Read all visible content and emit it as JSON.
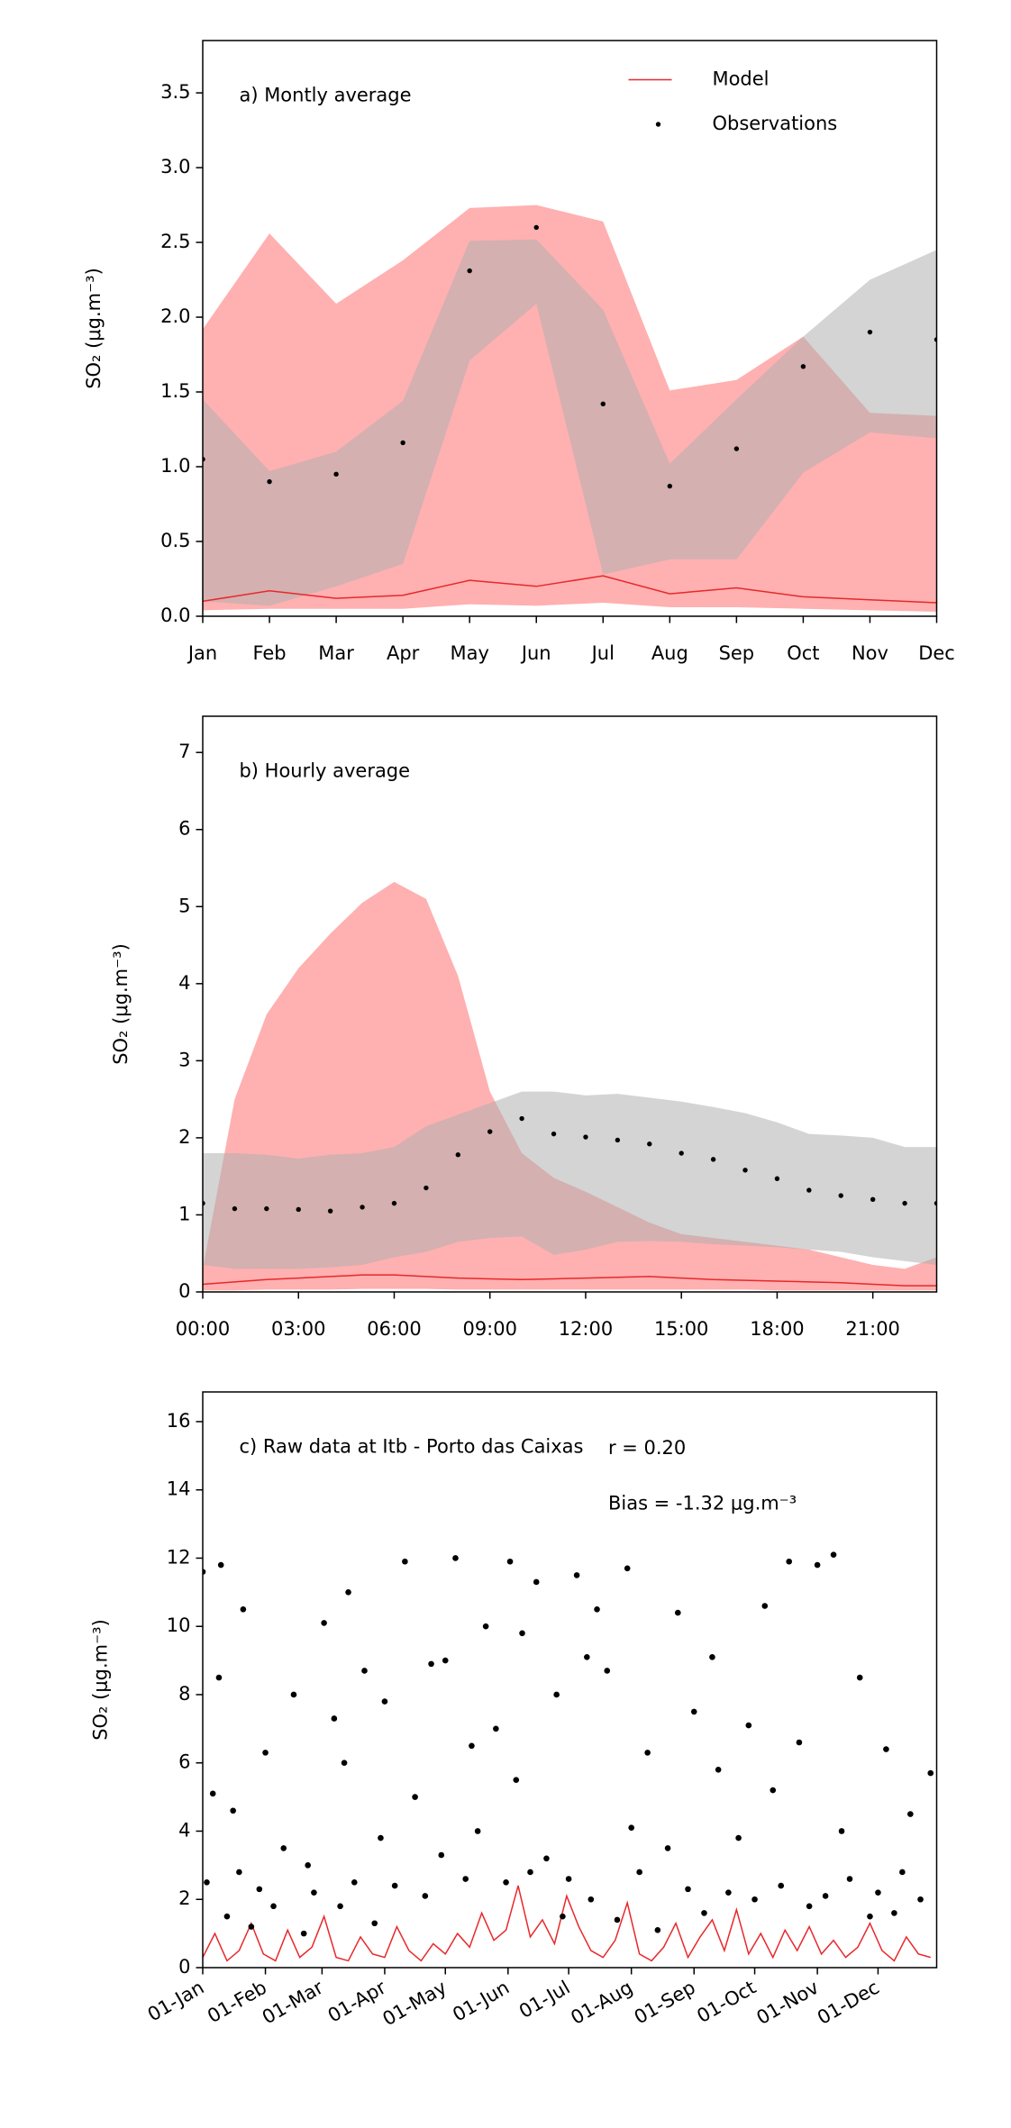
{
  "chart_data": [
    {
      "type": "line",
      "annotation": "a) Montly average",
      "ylabel": "SO₂ (μg.m⁻³)",
      "legend": "upper right",
      "categories": [
        "Jan",
        "Feb",
        "Mar",
        "Apr",
        "May",
        "Jun",
        "Jul",
        "Aug",
        "Sep",
        "Oct",
        "Nov",
        "Dec"
      ],
      "ylim": [
        0,
        3.85
      ],
      "yticks": [
        {
          "value": 0,
          "label": "0.0"
        },
        0.5,
        {
          "value": 1,
          "label": "1.0"
        },
        1.5,
        {
          "value": 2,
          "label": "2.0"
        },
        2.5,
        {
          "value": 3,
          "label": "3.0"
        },
        3.5
      ],
      "bands": [
        {
          "color": "#ff6f6f",
          "upper": [
            1.92,
            2.56,
            2.09,
            2.38,
            2.73,
            2.75,
            2.64,
            1.51,
            1.58,
            1.87,
            1.36,
            1.34
          ],
          "lower": [
            0.04,
            0.05,
            0.05,
            0.05,
            0.08,
            0.07,
            0.09,
            0.06,
            0.06,
            0.05,
            0.04,
            0.03
          ]
        },
        {
          "color": "#b0b0b0",
          "upper": [
            1.45,
            0.97,
            1.1,
            1.44,
            2.51,
            2.52,
            2.05,
            1.02,
            1.45,
            1.87,
            2.25,
            2.45
          ],
          "lower": [
            0.1,
            0.07,
            0.2,
            0.35,
            1.71,
            2.09,
            0.28,
            0.38,
            0.38,
            0.96,
            1.23,
            1.19
          ]
        }
      ],
      "series": [
        {
          "name": "Model",
          "color": "#e8282b",
          "marker": "line",
          "values": [
            0.1,
            0.17,
            0.12,
            0.14,
            0.24,
            0.2,
            0.27,
            0.15,
            0.19,
            0.13,
            0.11,
            0.09
          ]
        },
        {
          "name": "Observations",
          "color": "#000000",
          "marker": "dot",
          "values": [
            1.05,
            0.9,
            0.95,
            1.16,
            2.31,
            2.6,
            1.42,
            0.87,
            1.12,
            1.67,
            1.9,
            1.85
          ]
        }
      ]
    },
    {
      "type": "line",
      "annotation": "b) Hourly average",
      "ylabel": "SO₂ (μg.m⁻³)",
      "x": [
        0,
        1,
        2,
        3,
        4,
        5,
        6,
        7,
        8,
        9,
        10,
        11,
        12,
        13,
        14,
        15,
        16,
        17,
        18,
        19,
        20,
        21,
        22,
        23
      ],
      "xlim": [
        0,
        23
      ],
      "xticks": [
        {
          "value": 0,
          "label": "00:00"
        },
        {
          "value": 3,
          "label": "03:00"
        },
        {
          "value": 6,
          "label": "06:00"
        },
        {
          "value": 9,
          "label": "09:00"
        },
        {
          "value": 12,
          "label": "12:00"
        },
        {
          "value": 15,
          "label": "15:00"
        },
        {
          "value": 18,
          "label": "18:00"
        },
        {
          "value": 21,
          "label": "21:00"
        }
      ],
      "ylim": [
        0,
        7.47
      ],
      "yticks": [
        0,
        1,
        2,
        3,
        4,
        5,
        6,
        7
      ],
      "bands": [
        {
          "color": "#ff6f6f",
          "upper": [
            0.3,
            2.5,
            3.6,
            4.2,
            4.65,
            5.05,
            5.32,
            5.1,
            4.1,
            2.6,
            1.8,
            1.48,
            1.3,
            1.1,
            0.9,
            0.75,
            0.7,
            0.65,
            0.6,
            0.55,
            0.45,
            0.35,
            0.3,
            0.45
          ],
          "lower": [
            0.02,
            0.02,
            0.03,
            0.03,
            0.03,
            0.04,
            0.04,
            0.04,
            0.03,
            0.03,
            0.03,
            0.03,
            0.03,
            0.03,
            0.03,
            0.03,
            0.03,
            0.03,
            0.02,
            0.02,
            0.02,
            0.02,
            0.02,
            0.02
          ]
        },
        {
          "color": "#b0b0b0",
          "upper": [
            1.8,
            1.8,
            1.78,
            1.73,
            1.78,
            1.8,
            1.88,
            2.15,
            2.3,
            2.45,
            2.6,
            2.6,
            2.55,
            2.57,
            2.52,
            2.47,
            2.4,
            2.32,
            2.2,
            2.05,
            2.03,
            2.0,
            1.88,
            1.88
          ],
          "lower": [
            0.35,
            0.3,
            0.3,
            0.3,
            0.32,
            0.35,
            0.45,
            0.52,
            0.65,
            0.7,
            0.72,
            0.48,
            0.55,
            0.65,
            0.66,
            0.65,
            0.62,
            0.6,
            0.58,
            0.55,
            0.52,
            0.45,
            0.4,
            0.35
          ]
        }
      ],
      "series": [
        {
          "color": "#e8282b",
          "marker": "line",
          "values": [
            0.1,
            0.13,
            0.16,
            0.18,
            0.2,
            0.22,
            0.22,
            0.2,
            0.18,
            0.17,
            0.16,
            0.17,
            0.18,
            0.19,
            0.2,
            0.18,
            0.16,
            0.15,
            0.14,
            0.13,
            0.12,
            0.1,
            0.08,
            0.08
          ]
        },
        {
          "color": "#000000",
          "marker": "dot",
          "values": [
            1.15,
            1.08,
            1.08,
            1.07,
            1.05,
            1.1,
            1.15,
            1.35,
            1.78,
            2.08,
            2.25,
            2.05,
            2.01,
            1.97,
            1.92,
            1.8,
            1.72,
            1.58,
            1.47,
            1.32,
            1.25,
            1.2,
            1.15,
            1.15
          ]
        }
      ]
    },
    {
      "type": "line",
      "annotation": "c) Raw data at Itb - Porto das Caixas",
      "r_text": "r = 0.20",
      "bias_text": "Bias = -1.32 μg.m⁻³",
      "ylabel": "SO₂ (μg.m⁻³)",
      "xlim": [
        0,
        363
      ],
      "xticks": [
        {
          "value": 0,
          "label": "01-Jan"
        },
        {
          "value": 31,
          "label": "01-Feb"
        },
        {
          "value": 59,
          "label": "01-Mar"
        },
        {
          "value": 90,
          "label": "01-Apr"
        },
        {
          "value": 120,
          "label": "01-May"
        },
        {
          "value": 151,
          "label": "01-Jun"
        },
        {
          "value": 181,
          "label": "01-Jul"
        },
        {
          "value": 212,
          "label": "01-Aug"
        },
        {
          "value": 243,
          "label": "01-Sep"
        },
        {
          "value": 273,
          "label": "01-Oct"
        },
        {
          "value": 304,
          "label": "01-Nov"
        },
        {
          "value": 334,
          "label": "01-Dec"
        }
      ],
      "ylim": [
        0,
        16.87
      ],
      "yticks": [
        0,
        2,
        4,
        6,
        8,
        10,
        12,
        14,
        16
      ],
      "series": [
        {
          "color": "#e8282b",
          "marker": "line",
          "x": [
            0,
            6,
            12,
            18,
            24,
            30,
            36,
            42,
            48,
            54,
            60,
            66,
            72,
            78,
            84,
            90,
            96,
            102,
            108,
            114,
            120,
            126,
            132,
            138,
            144,
            150,
            156,
            162,
            168,
            174,
            180,
            186,
            192,
            198,
            204,
            210,
            216,
            222,
            228,
            234,
            240,
            246,
            252,
            258,
            264,
            270,
            276,
            282,
            288,
            294,
            300,
            306,
            312,
            318,
            324,
            330,
            336,
            342,
            348,
            354,
            360
          ],
          "values": [
            0.3,
            1.0,
            0.2,
            0.5,
            1.3,
            0.4,
            0.2,
            1.1,
            0.3,
            0.6,
            1.5,
            0.3,
            0.2,
            0.9,
            0.4,
            0.3,
            1.2,
            0.5,
            0.2,
            0.7,
            0.4,
            1.0,
            0.6,
            1.6,
            0.8,
            1.1,
            2.4,
            0.9,
            1.4,
            0.7,
            2.1,
            1.2,
            0.5,
            0.3,
            0.8,
            1.9,
            0.4,
            0.2,
            0.6,
            1.3,
            0.3,
            0.9,
            1.4,
            0.5,
            1.7,
            0.4,
            1.0,
            0.3,
            1.1,
            0.5,
            1.2,
            0.4,
            0.8,
            0.3,
            0.6,
            1.3,
            0.5,
            0.2,
            0.9,
            0.4,
            0.3
          ]
        },
        {
          "color": "#000000",
          "marker": "dot",
          "x": [
            0,
            2,
            5,
            8,
            9,
            12,
            15,
            18,
            20,
            24,
            28,
            31,
            35,
            40,
            45,
            50,
            52,
            55,
            60,
            65,
            68,
            70,
            72,
            75,
            80,
            85,
            88,
            90,
            95,
            100,
            105,
            110,
            113,
            118,
            120,
            125,
            130,
            133,
            136,
            140,
            145,
            150,
            152,
            155,
            158,
            162,
            165,
            170,
            175,
            178,
            181,
            185,
            190,
            192,
            195,
            200,
            205,
            210,
            212,
            216,
            220,
            225,
            230,
            235,
            240,
            243,
            248,
            252,
            255,
            260,
            265,
            270,
            273,
            278,
            282,
            286,
            290,
            295,
            300,
            304,
            308,
            312,
            316,
            320,
            325,
            330,
            334,
            338,
            342,
            346,
            350,
            355,
            360
          ],
          "values": [
            11.6,
            2.5,
            5.1,
            8.5,
            11.8,
            1.5,
            4.6,
            2.8,
            10.5,
            1.2,
            2.3,
            6.3,
            1.8,
            3.5,
            8.0,
            1.0,
            3.0,
            2.2,
            10.1,
            7.3,
            1.8,
            6.0,
            11.0,
            2.5,
            8.7,
            1.3,
            3.8,
            7.8,
            2.4,
            11.9,
            5.0,
            2.1,
            8.9,
            3.3,
            9.0,
            12.0,
            2.6,
            6.5,
            4.0,
            10.0,
            7.0,
            2.5,
            11.9,
            5.5,
            9.8,
            2.8,
            11.3,
            3.2,
            8.0,
            1.5,
            2.6,
            11.5,
            9.1,
            2.0,
            10.5,
            8.7,
            1.4,
            11.7,
            4.1,
            2.8,
            6.3,
            1.1,
            3.5,
            10.4,
            2.3,
            7.5,
            1.6,
            9.1,
            5.8,
            2.2,
            3.8,
            7.1,
            2.0,
            10.6,
            5.2,
            2.4,
            11.9,
            6.6,
            1.8,
            11.8,
            2.1,
            12.1,
            4.0,
            2.6,
            8.5,
            1.5,
            2.2,
            6.4,
            1.6,
            2.8,
            4.5,
            2.0,
            5.7
          ]
        }
      ]
    }
  ]
}
